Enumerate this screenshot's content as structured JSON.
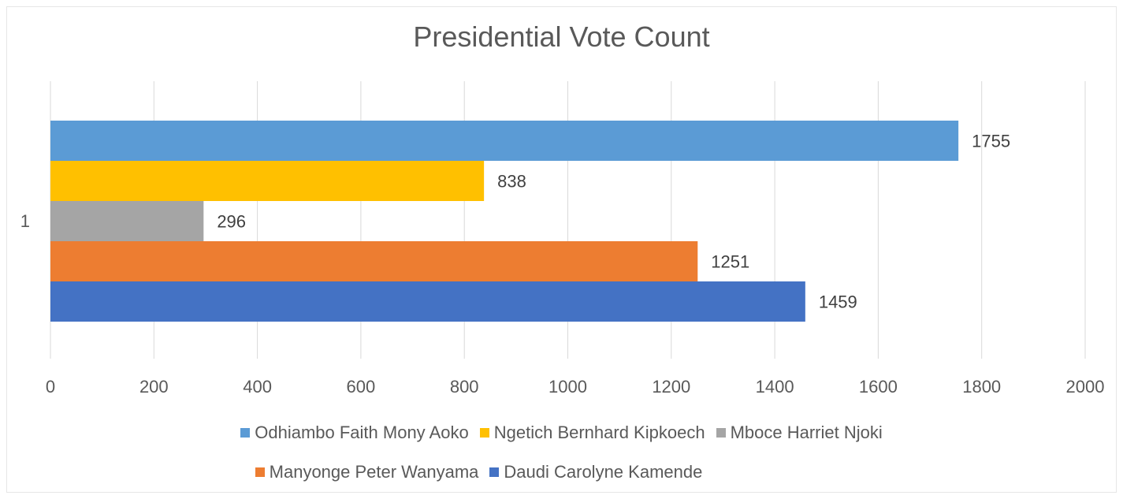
{
  "chart_data": {
    "type": "bar",
    "orientation": "horizontal",
    "title": "Presidential Vote Count",
    "xlabel": "",
    "ylabel": "",
    "categories": [
      "1"
    ],
    "xlim": [
      0,
      2000
    ],
    "xticks": [
      0,
      200,
      400,
      600,
      800,
      1000,
      1200,
      1400,
      1600,
      1800,
      2000
    ],
    "grid": true,
    "legend_position": "bottom",
    "series": [
      {
        "name": "Odhiambo Faith Mony Aoko",
        "values": [
          1755
        ],
        "color": "#5B9BD5"
      },
      {
        "name": "Ngetich Bernhard Kipkoech",
        "values": [
          838
        ],
        "color": "#FFC000"
      },
      {
        "name": "Mboce Harriet Njoki",
        "values": [
          296
        ],
        "color": "#A5A5A5"
      },
      {
        "name": "Manyonge Peter Wanyama",
        "values": [
          1251
        ],
        "color": "#ED7D31"
      },
      {
        "name": "Daudi Carolyne Kamende",
        "values": [
          1459
        ],
        "color": "#4472C4"
      }
    ]
  }
}
